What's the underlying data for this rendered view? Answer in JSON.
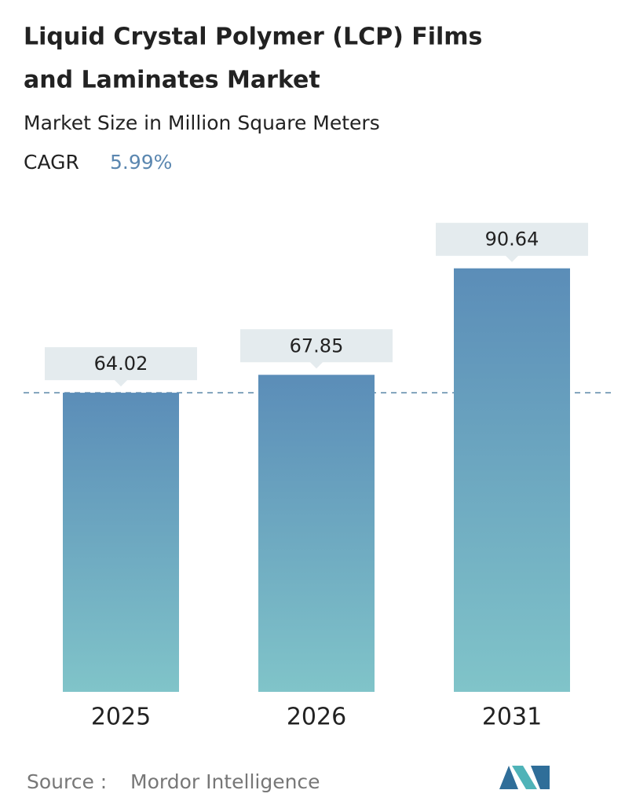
{
  "chart_data": {
    "type": "bar",
    "title": [
      "Liquid Crystal Polymer (LCP) Films",
      "and Laminates Market"
    ],
    "subtitle": "Market Size in Million Square Meters",
    "cagr_label": "CAGR",
    "cagr_value": "5.99%",
    "categories": [
      "2025",
      "2026",
      "2031"
    ],
    "values": [
      64.02,
      67.85,
      90.64
    ],
    "color": [
      "#5b8db8",
      "#80c4c9"
    ],
    "ylim": [
      0,
      100
    ],
    "source_label": "Source :",
    "source": "Mordor Intelligence"
  }
}
